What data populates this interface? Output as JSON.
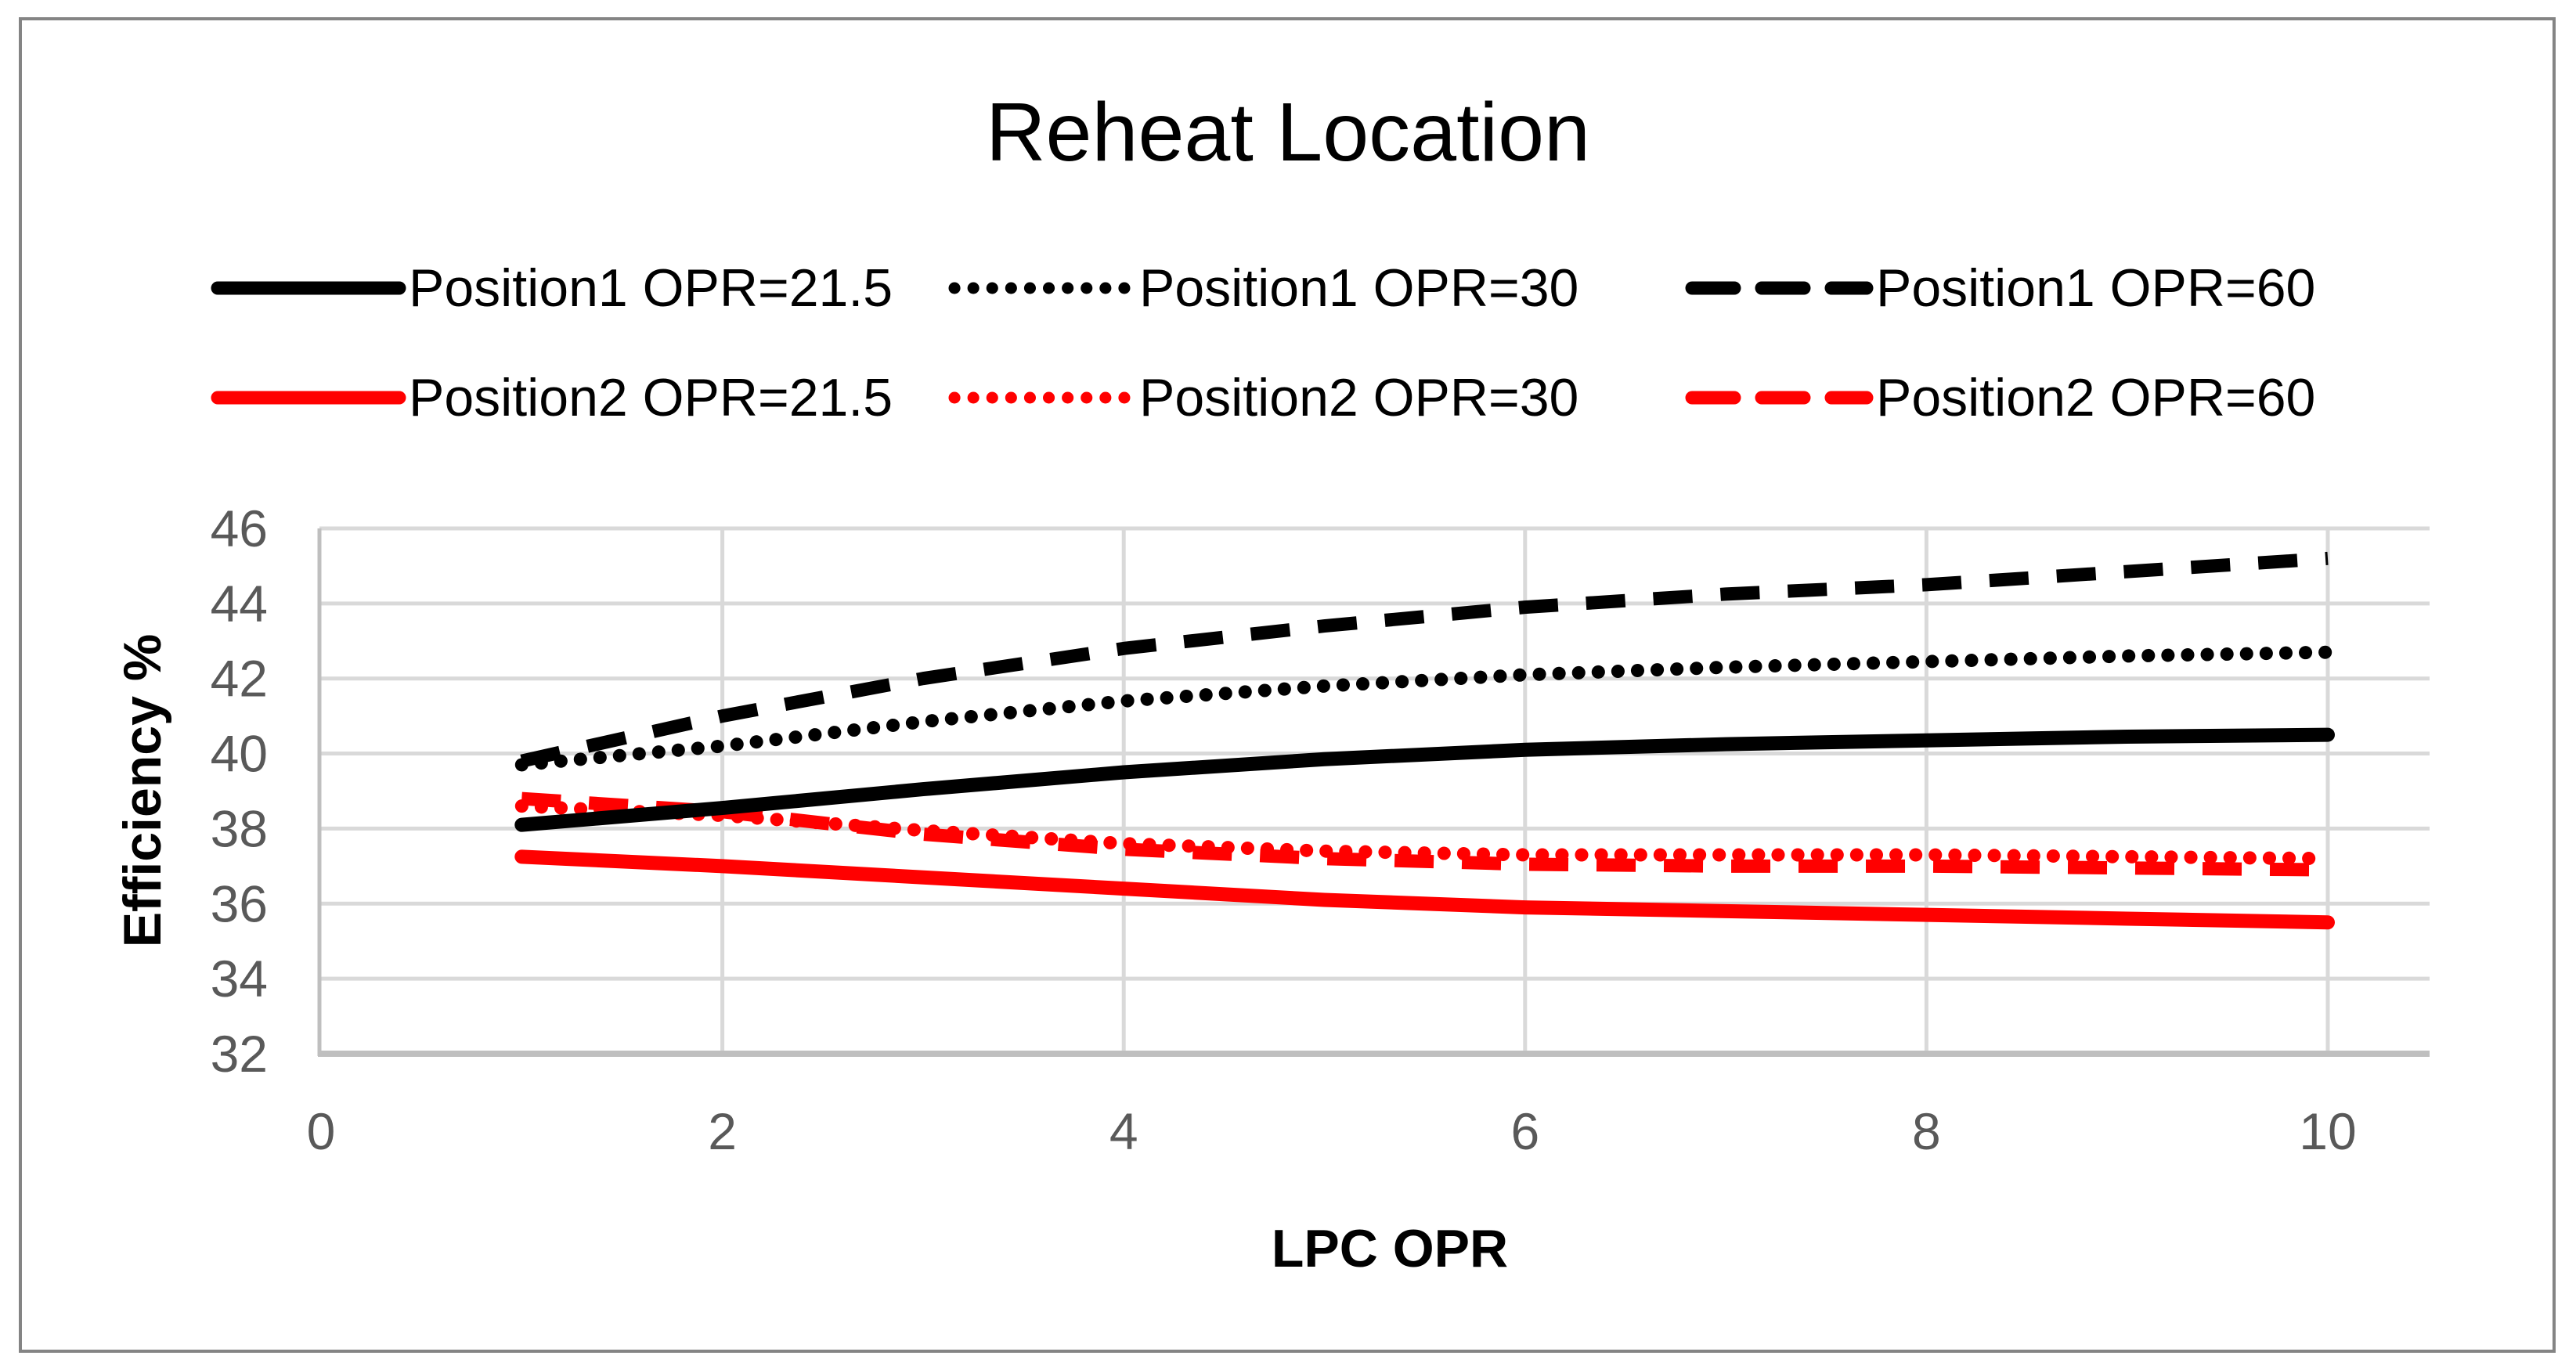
{
  "chart": {
    "title": "Reheat Location"
  },
  "chart_data": {
    "type": "line",
    "title": "Reheat Location",
    "xlabel": "LPC OPR",
    "ylabel": "Efficiency %",
    "x": [
      1,
      2,
      3,
      4,
      5,
      6,
      7,
      8,
      9,
      10
    ],
    "xticks": [
      0,
      2,
      4,
      6,
      8,
      10
    ],
    "yticks": [
      32,
      34,
      36,
      38,
      40,
      42,
      44,
      46
    ],
    "xlim": [
      0,
      10.5
    ],
    "ylim": [
      32,
      46
    ],
    "grid": true,
    "legend_position": "top-two-rows",
    "series": [
      {
        "name": "Position1 OPR=21.5",
        "color": "#000000",
        "style": "solid",
        "values": [
          38.1,
          38.55,
          39.05,
          39.5,
          39.85,
          40.1,
          40.25,
          40.35,
          40.45,
          40.5
        ]
      },
      {
        "name": "Position1 OPR=30",
        "color": "#000000",
        "style": "dotted",
        "values": [
          39.7,
          40.2,
          40.85,
          41.4,
          41.8,
          42.1,
          42.3,
          42.45,
          42.6,
          42.7
        ]
      },
      {
        "name": "Position1 OPR=60",
        "color": "#000000",
        "style": "dashed",
        "values": [
          39.8,
          41.0,
          42.0,
          42.8,
          43.4,
          43.9,
          44.25,
          44.5,
          44.85,
          45.2
        ]
      },
      {
        "name": "Position2 OPR=21.5",
        "color": "#FF0000",
        "style": "solid",
        "values": [
          37.25,
          37.0,
          36.7,
          36.4,
          36.1,
          35.9,
          35.8,
          35.7,
          35.6,
          35.5
        ]
      },
      {
        "name": "Position2 OPR=30",
        "color": "#FF0000",
        "style": "dotted",
        "values": [
          38.6,
          38.35,
          37.95,
          37.6,
          37.4,
          37.3,
          37.3,
          37.3,
          37.25,
          37.2
        ]
      },
      {
        "name": "Position2 OPR=60",
        "color": "#FF0000",
        "style": "dashed",
        "values": [
          38.8,
          38.45,
          37.85,
          37.45,
          37.2,
          37.05,
          37.0,
          37.0,
          36.95,
          36.9
        ]
      }
    ],
    "colors": {
      "series_black": "#000000",
      "series_red": "#FF0000",
      "grid": "#D9D9D9",
      "axis_line": "#BFBFBF",
      "tick_label": "#595959",
      "text": "#000000",
      "border": "#848484",
      "background": "#FFFFFF"
    }
  }
}
